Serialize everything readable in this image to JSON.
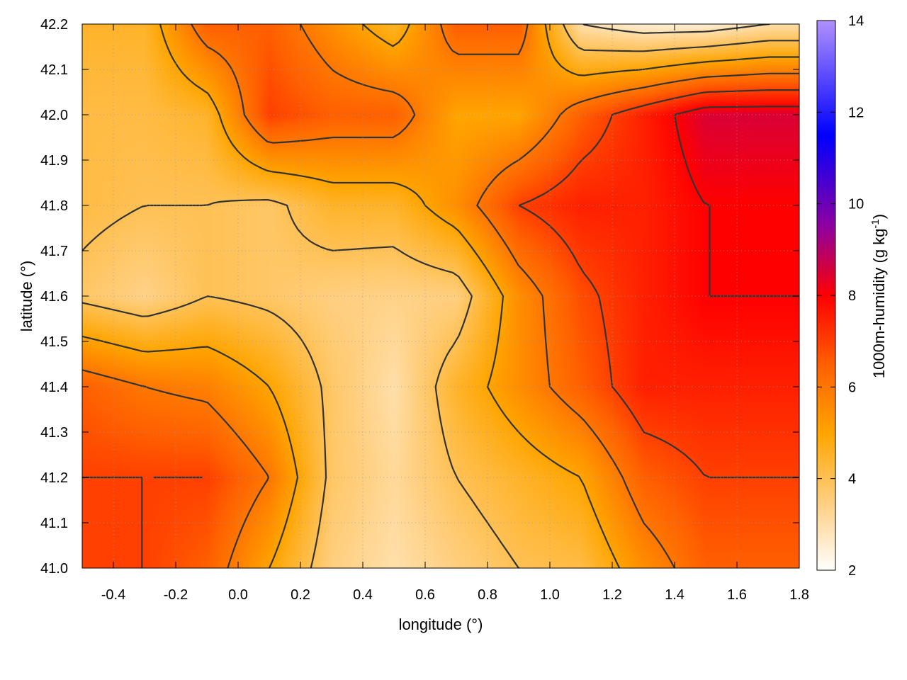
{
  "chart_data": {
    "type": "heatmap",
    "title": "",
    "xlabel": "longitude (°)",
    "ylabel": "latitude (°)",
    "colorbar_label_prefix": "1000m-humidity (g kg",
    "colorbar_label_sup": "-1",
    "colorbar_label_suffix": ")",
    "xlim": [
      -0.5,
      1.8
    ],
    "ylim": [
      41.0,
      42.2
    ],
    "clim": [
      2,
      14
    ],
    "x_ticks": [
      "-0.4",
      "-0.2",
      "0.0",
      "0.2",
      "0.4",
      "0.6",
      "0.8",
      "1.0",
      "1.2",
      "1.4",
      "1.6",
      "1.8"
    ],
    "x_tick_values": [
      -0.4,
      -0.2,
      0.0,
      0.2,
      0.4,
      0.6,
      0.8,
      1.0,
      1.2,
      1.4,
      1.6,
      1.8
    ],
    "y_ticks": [
      "41.0",
      "41.1",
      "41.2",
      "41.3",
      "41.4",
      "41.5",
      "41.6",
      "41.7",
      "41.8",
      "41.9",
      "42.0",
      "42.1",
      "42.2"
    ],
    "y_tick_values": [
      41.0,
      41.1,
      41.2,
      41.3,
      41.4,
      41.5,
      41.6,
      41.7,
      41.8,
      41.9,
      42.0,
      42.1,
      42.2
    ],
    "colorbar_ticks": [
      "2",
      "4",
      "6",
      "8",
      "10",
      "12",
      "14"
    ],
    "colorbar_tick_values": [
      2,
      4,
      6,
      8,
      10,
      12,
      14
    ],
    "grid": true,
    "colormap": [
      "#ffffff",
      "#ffcf80",
      "#ffa500",
      "#ff6000",
      "#ff0000",
      "#9000a0",
      "#0000ff",
      "#b090ff"
    ],
    "colormap_stops": [
      2,
      3.5,
      5,
      6.5,
      8,
      9.5,
      11.5,
      14
    ],
    "contours": true,
    "contour_color": "#333333",
    "humidity_field": {
      "lon": [
        -0.5,
        -0.3,
        -0.1,
        0.1,
        0.3,
        0.5,
        0.7,
        0.9,
        1.1,
        1.3,
        1.5,
        1.7,
        1.8
      ],
      "lat": [
        41.0,
        41.2,
        41.4,
        41.6,
        41.8,
        42.0,
        42.2
      ],
      "values": [
        [
          7.0,
          7.0,
          6.5,
          5.0,
          3.5,
          3.0,
          3.5,
          4.0,
          4.2,
          5.5,
          6.5,
          6.5,
          6.5
        ],
        [
          7.0,
          7.0,
          7.0,
          6.0,
          3.8,
          3.2,
          4.0,
          4.5,
          5.0,
          6.5,
          7.0,
          7.0,
          7.0
        ],
        [
          6.5,
          6.0,
          5.8,
          5.0,
          3.8,
          3.0,
          4.5,
          5.5,
          6.5,
          7.5,
          7.5,
          7.5,
          7.5
        ],
        [
          3.8,
          3.4,
          4.0,
          3.8,
          3.5,
          3.4,
          3.5,
          5.5,
          6.8,
          7.5,
          8.0,
          8.0,
          8.0
        ],
        [
          4.2,
          4.0,
          4.0,
          3.8,
          4.5,
          4.5,
          5.5,
          7.0,
          7.5,
          7.5,
          8.0,
          8.0,
          8.0
        ],
        [
          4.2,
          4.2,
          4.5,
          7.0,
          6.5,
          6.5,
          5.0,
          5.0,
          6.5,
          7.5,
          8.5,
          8.5,
          8.5
        ],
        [
          4.5,
          4.5,
          6.5,
          6.5,
          5.5,
          4.5,
          6.5,
          6.5,
          3.0,
          2.5,
          2.5,
          3.0,
          3.0
        ]
      ]
    }
  }
}
